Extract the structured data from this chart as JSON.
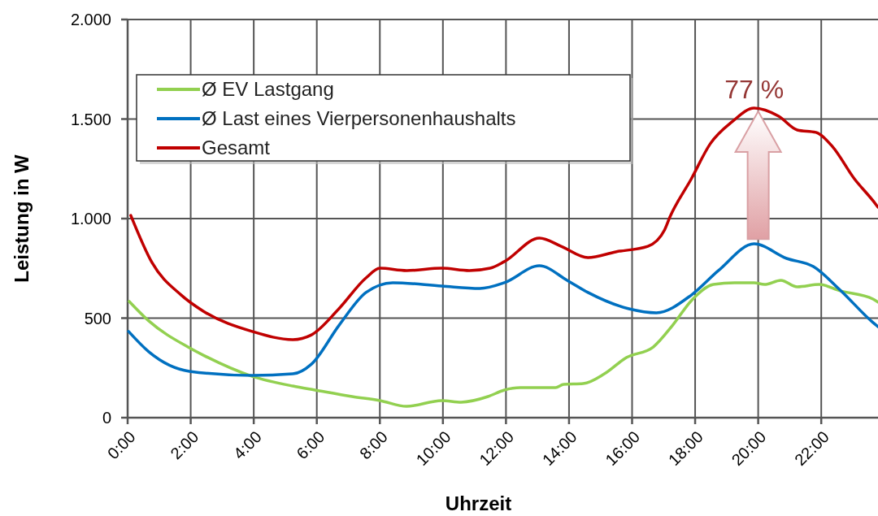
{
  "chart_data": {
    "type": "line",
    "xlabel": "Uhrzeit",
    "ylabel": "Leistung in W",
    "xlim": [
      0,
      23.8
    ],
    "ylim": [
      0,
      2000
    ],
    "xticks": [
      {
        "value": 0,
        "label": "0:00"
      },
      {
        "value": 2,
        "label": "2:00"
      },
      {
        "value": 4,
        "label": "4:00"
      },
      {
        "value": 6,
        "label": "6:00"
      },
      {
        "value": 8,
        "label": "8:00"
      },
      {
        "value": 10,
        "label": "10:00"
      },
      {
        "value": 12,
        "label": "12:00"
      },
      {
        "value": 14,
        "label": "14:00"
      },
      {
        "value": 16,
        "label": "16:00"
      },
      {
        "value": 18,
        "label": "18:00"
      },
      {
        "value": 20,
        "label": "20:00"
      },
      {
        "value": 22,
        "label": "22:00"
      }
    ],
    "yticks": [
      0,
      500,
      {
        "value": 1000,
        "label": "1.000"
      },
      {
        "value": 1500,
        "label": "1.500"
      },
      {
        "value": 2000,
        "label": "2.000"
      }
    ],
    "grid": true,
    "legend": "top left",
    "line_style": "solid",
    "marker": "none",
    "annotations": [
      {
        "text": "77 %",
        "x": 20,
        "y": 1555
      }
    ],
    "series": [
      {
        "name": "Ø EV Lastgang",
        "color": "#92d050",
        "x": [
          0.05,
          0.67,
          1.96,
          2.4,
          3.95,
          5.24,
          5.94,
          7.12,
          8.0,
          8.85,
          9.96,
          10.58,
          11.43,
          11.95,
          12.46,
          13.57,
          13.83,
          14.45,
          15.12,
          15.82,
          16.67,
          17.29,
          17.88,
          18.58,
          19.25,
          19.87,
          20.2,
          20.72,
          21.24,
          21.94,
          22.6,
          23.64,
          23.8
        ],
        "values": [
          584,
          486,
          351,
          314,
          208,
          159,
          139,
          106,
          86,
          57,
          86,
          78,
          106,
          139,
          151,
          151,
          167,
          171,
          220,
          302,
          355,
          465,
          588,
          669,
          678,
          678,
          669,
          690,
          657,
          669,
          637,
          596,
          580
        ]
      },
      {
        "name": "Ø Last eines Vierpersonenhaushalts",
        "color": "#0070c0",
        "x": [
          0.03,
          0.67,
          1.96,
          3.95,
          5.24,
          5.83,
          6.71,
          7.56,
          8.41,
          9.96,
          11.17,
          11.95,
          13.06,
          13.94,
          14.6,
          15.9,
          16.77,
          17.88,
          18.74,
          19.87,
          20.9,
          21.75,
          22.6,
          23.64,
          23.8
        ],
        "values": [
          433,
          331,
          233,
          212,
          220,
          269,
          465,
          629,
          678,
          661,
          649,
          678,
          763,
          690,
          629,
          547,
          527,
          616,
          739,
          873,
          800,
          759,
          641,
          478,
          457
        ]
      },
      {
        "name": "Gesamt",
        "color": "#c00000",
        "x": [
          0.1,
          0.77,
          1.7,
          2.4,
          3.95,
          5.24,
          5.83,
          6.7,
          7.56,
          8.0,
          8.85,
          9.96,
          10.84,
          11.5,
          11.95,
          13.06,
          13.75,
          14.6,
          15.48,
          16.5,
          17.03,
          17.2,
          17.88,
          18.48,
          19.17,
          19.87,
          20.65,
          21.24,
          21.83,
          22.35,
          23.05,
          23.64,
          23.8
        ],
        "values": [
          1016,
          780,
          616,
          535,
          433,
          392,
          416,
          547,
          702,
          751,
          739,
          751,
          739,
          751,
          784,
          902,
          861,
          804,
          833,
          861,
          943,
          1008,
          1200,
          1376,
          1486,
          1555,
          1514,
          1445,
          1433,
          1363,
          1200,
          1090,
          1057
        ]
      }
    ]
  }
}
